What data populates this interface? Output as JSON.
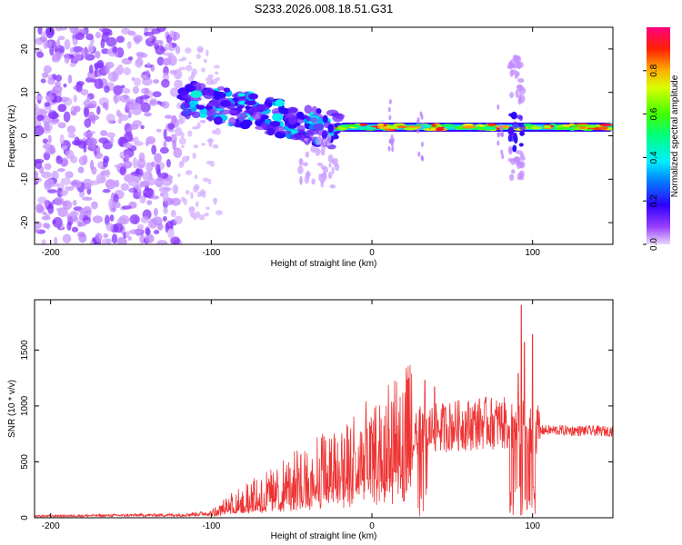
{
  "chart_data": [
    {
      "type": "heatmap",
      "title": "S233.2026.008.18.51.G31",
      "xlabel": "Height of straight line (km)",
      "ylabel": "Frequency (Hz)",
      "xlim": [
        -210,
        150
      ],
      "ylim": [
        -25,
        25
      ],
      "xticks": [
        -200,
        -100,
        0,
        100
      ],
      "yticks": [
        -20,
        -10,
        0,
        10,
        20
      ],
      "colorbar": {
        "label": "Normalized spectral amplitude",
        "range": [
          0,
          1
        ],
        "ticks": [
          0.0,
          0.2,
          0.4,
          0.6,
          0.8
        ]
      },
      "features": [
        {
          "name": "diffuse noise region",
          "x": [
            -210,
            -120
          ],
          "y": [
            -25,
            25
          ],
          "amplitude": 0.05
        },
        {
          "name": "descending tone",
          "x": [
            -118,
            -20
          ],
          "y_start": 9,
          "y_end": 1,
          "amplitude": 0.3
        },
        {
          "name": "steady tone",
          "x": [
            -20,
            150
          ],
          "y": 2,
          "amplitude": 0.75
        },
        {
          "name": "broadband burst",
          "x": 90,
          "y": [
            -10,
            18
          ],
          "amplitude": 0.2
        }
      ]
    },
    {
      "type": "line",
      "series": [
        {
          "name": "SNR",
          "color": "#ee3333"
        }
      ],
      "xlabel": "Height of straight line (km)",
      "ylabel": "SNR (10 * v/v)",
      "xlim": [
        -210,
        150
      ],
      "ylim": [
        0,
        1950
      ],
      "xticks": [
        -200,
        -100,
        0,
        100
      ],
      "yticks": [
        0,
        500,
        1000,
        1500
      ],
      "envelope": [
        {
          "x": -210,
          "y": 15
        },
        {
          "x": -120,
          "y": 25
        },
        {
          "x": -100,
          "y": 40
        },
        {
          "x": -90,
          "y": 90
        },
        {
          "x": -80,
          "y": 150
        },
        {
          "x": -60,
          "y": 220
        },
        {
          "x": -40,
          "y": 330
        },
        {
          "x": -20,
          "y": 420
        },
        {
          "x": 0,
          "y": 520
        },
        {
          "x": 20,
          "y": 620
        },
        {
          "x": 30,
          "y": 800
        },
        {
          "x": 50,
          "y": 840
        },
        {
          "x": 70,
          "y": 870
        },
        {
          "x": 90,
          "y": 860
        },
        {
          "x": 105,
          "y": 800
        },
        {
          "x": 150,
          "y": 790
        }
      ],
      "peaks": [
        {
          "x": 33,
          "y": 1230
        },
        {
          "x": 39,
          "y": 1170
        },
        {
          "x": 91,
          "y": 1290
        },
        {
          "x": 93,
          "y": 1900
        },
        {
          "x": 95,
          "y": 1570
        },
        {
          "x": 100,
          "y": 1640
        }
      ]
    }
  ]
}
